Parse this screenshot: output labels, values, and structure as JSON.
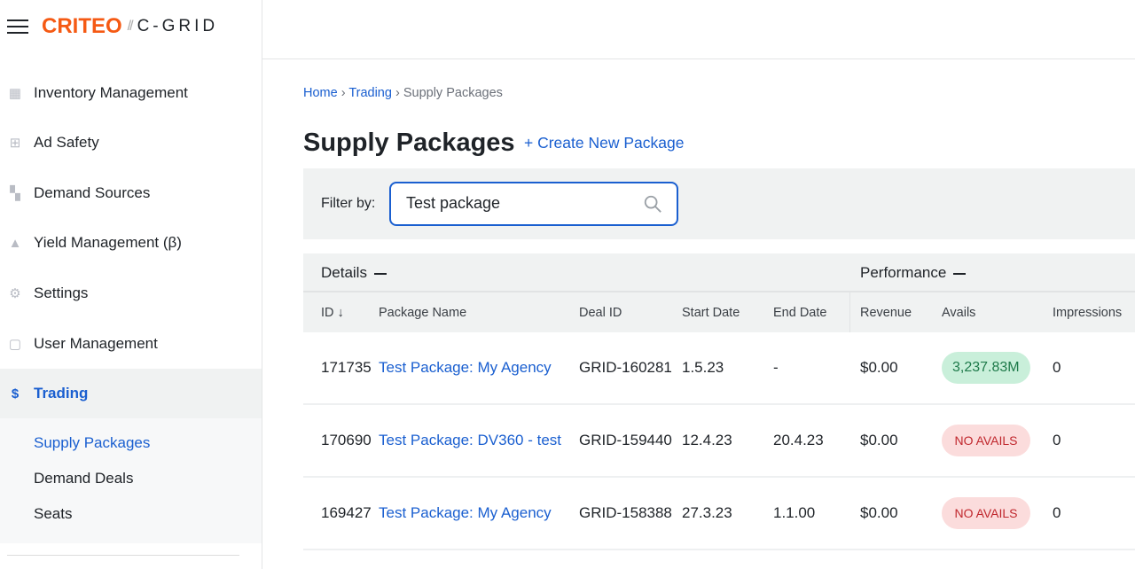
{
  "app": {
    "brand": "CRITEO",
    "separator": "//",
    "product": "C-GRID"
  },
  "sidebar": {
    "items": [
      {
        "label": "Inventory Management",
        "icon": "building-icon"
      },
      {
        "label": "Ad Safety",
        "icon": "plus-square-icon"
      },
      {
        "label": "Demand Sources",
        "icon": "dashboard-icon"
      },
      {
        "label": "Yield Management (β)",
        "icon": "flask-icon"
      },
      {
        "label": "Settings",
        "icon": "gear-icon"
      },
      {
        "label": "User Management",
        "icon": "user-card-icon"
      },
      {
        "label": "Trading",
        "icon": "dollar-icon",
        "active": true
      }
    ],
    "subitems": [
      {
        "label": "Supply Packages",
        "active": true
      },
      {
        "label": "Demand Deals"
      },
      {
        "label": "Seats"
      }
    ]
  },
  "breadcrumb": [
    "Home",
    "Trading",
    "Supply Packages"
  ],
  "page": {
    "title": "Supply Packages",
    "create_label": "+ Create New Package"
  },
  "filter": {
    "label": "Filter by:",
    "value": "Test package"
  },
  "table": {
    "groups": [
      "Details",
      "Performance"
    ],
    "columns": [
      "ID",
      "Package Name",
      "Deal ID",
      "Start Date",
      "End Date",
      "Revenue",
      "Avails",
      "Impressions"
    ],
    "sort": {
      "column": "ID",
      "direction": "desc"
    },
    "rows": [
      {
        "id": "171735",
        "name": "Test Package: My Agency",
        "deal": "GRID-160281",
        "start": "1.5.23",
        "end": "-",
        "revenue": "$0.00",
        "avails": "3,237.83M",
        "avails_status": "ok",
        "impressions": "0"
      },
      {
        "id": "170690",
        "name": "Test Package: DV360 - test",
        "deal": "GRID-159440",
        "start": "12.4.23",
        "end": "20.4.23",
        "revenue": "$0.00",
        "avails": "NO AVAILS",
        "avails_status": "none",
        "impressions": "0"
      },
      {
        "id": "169427",
        "name": "Test Package: My Agency",
        "deal": "GRID-158388",
        "start": "27.3.23",
        "end": "1.1.00",
        "revenue": "$0.00",
        "avails": "NO AVAILS",
        "avails_status": "none",
        "impressions": "0"
      }
    ]
  },
  "colors": {
    "brand": "#f55a14",
    "accent": "#1a5fd0",
    "ok": "#c9efda",
    "none": "#fbdcdc"
  }
}
